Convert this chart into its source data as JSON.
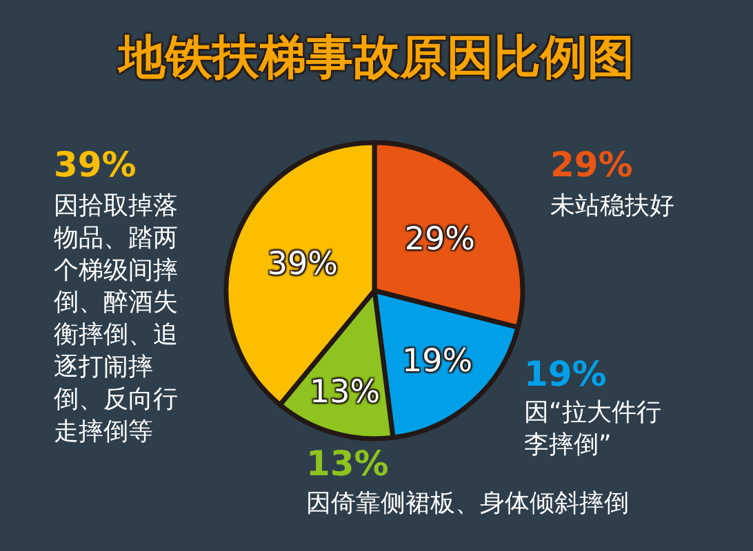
{
  "chart_data": {
    "type": "pie",
    "title": "地铁扶梯事故原因比例图",
    "categories": [
      "未站稳扶好",
      "因“拉大件行李摔倒”",
      "因倚靠侧裙板、身体倾斜摔倒",
      "因拾取掉落物品、踏两个梯级间摔倒、醉酒失衡摔倒、追逐打闹摔倒、反向行走摔倒等"
    ],
    "values": [
      29,
      19,
      13,
      39
    ],
    "colors": [
      "#e95513",
      "#00a0e8",
      "#8fc31f",
      "#fbbf00"
    ],
    "value_labels": [
      "29%",
      "19%",
      "13%",
      "39%"
    ]
  }
}
